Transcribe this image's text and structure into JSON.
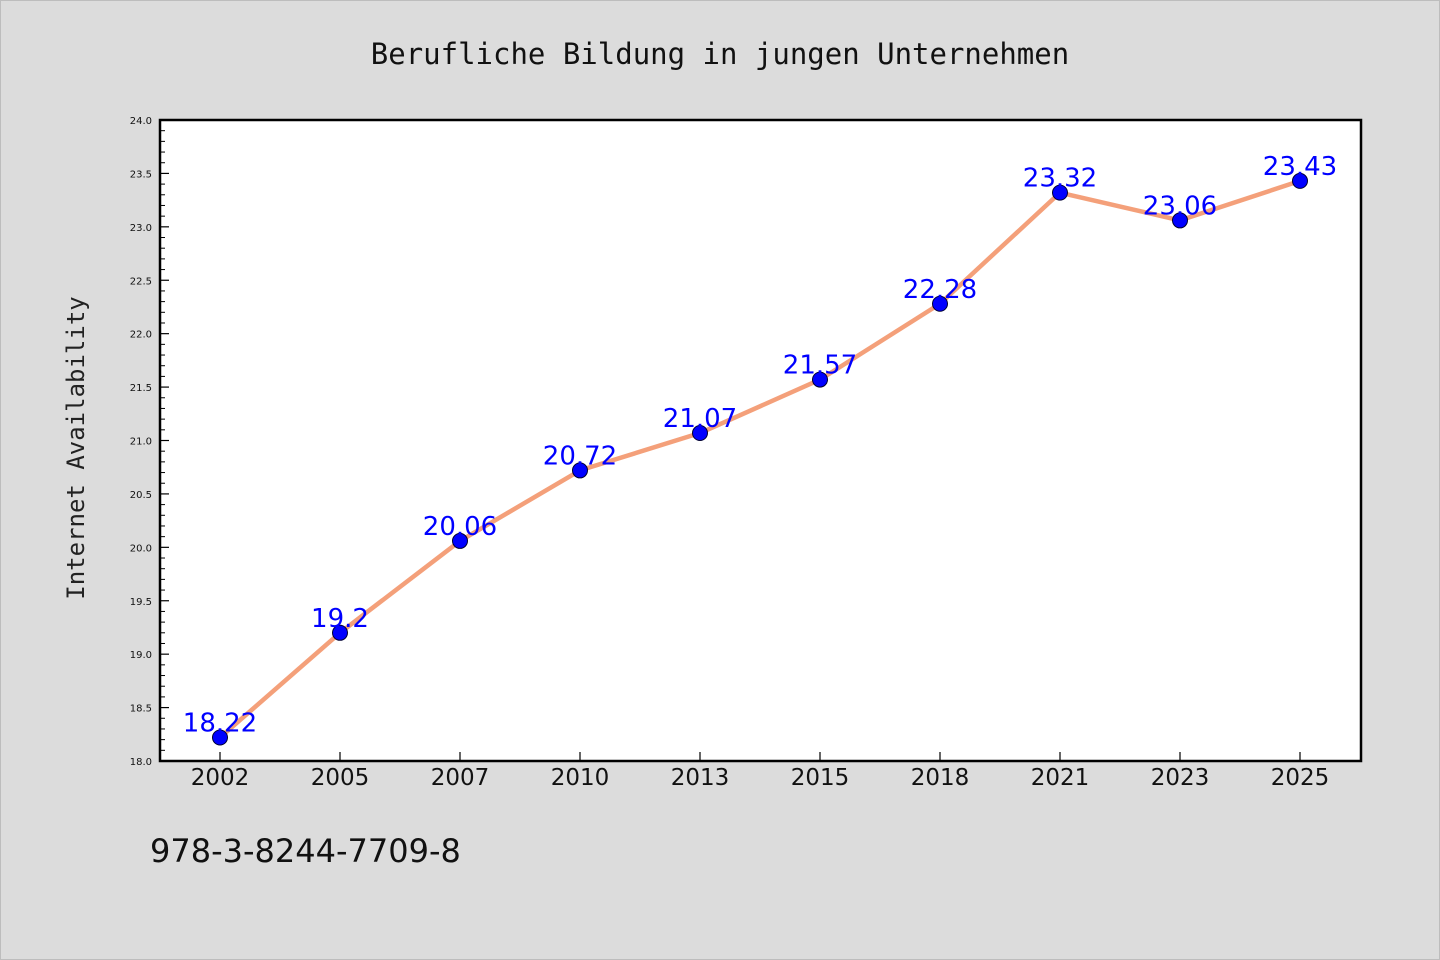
{
  "chart_data": {
    "type": "line",
    "title": "Berufliche Bildung in jungen Unternehmen",
    "xlabel": "",
    "ylabel": "Internet Availability",
    "categories": [
      "2002",
      "2005",
      "2007",
      "2010",
      "2013",
      "2015",
      "2018",
      "2021",
      "2023",
      "2025"
    ],
    "series": [
      {
        "values": [
          18.22,
          19.2,
          20.06,
          20.72,
          21.07,
          21.57,
          22.28,
          23.32,
          23.06,
          23.43
        ],
        "line_color": "#f4a07a",
        "marker_color": "#0000ff"
      }
    ],
    "data_labels": [
      "18.22",
      "19.2",
      "20.06",
      "20.72",
      "21.07",
      "21.57",
      "22.28",
      "23.32",
      "23.06",
      "23.43"
    ],
    "ylim": [
      18.0,
      24.0
    ],
    "yticks": [
      "18.0",
      "18.5",
      "19.0",
      "19.5",
      "20.0",
      "20.5",
      "21.0",
      "21.5",
      "22.0",
      "22.5",
      "23.0",
      "23.5",
      "24.0"
    ],
    "grid": false,
    "legend": "none"
  },
  "footer": {
    "isbn": "978-3-8244-7709-8"
  }
}
